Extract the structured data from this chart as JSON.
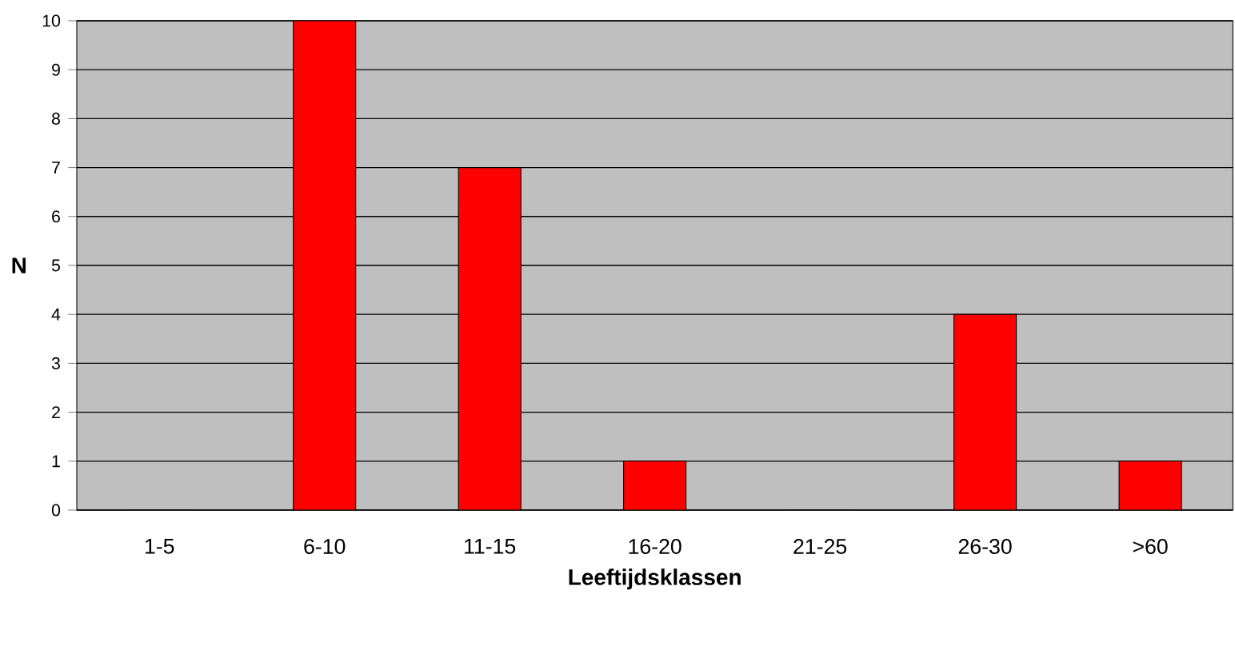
{
  "chart_data": {
    "type": "bar",
    "xlabel": "Leeftijdsklassen",
    "ylabel": "N",
    "categories": [
      "1-5",
      "6-10",
      "11-15",
      "16-20",
      "21-25",
      "26-30",
      ">60"
    ],
    "values": [
      0,
      10,
      7,
      1,
      0,
      4,
      1
    ],
    "color": "#ff0000",
    "ylim": [
      0,
      10
    ],
    "yticks": [
      0,
      1,
      2,
      3,
      4,
      5,
      6,
      7,
      8,
      9,
      10
    ],
    "grid": "y"
  }
}
